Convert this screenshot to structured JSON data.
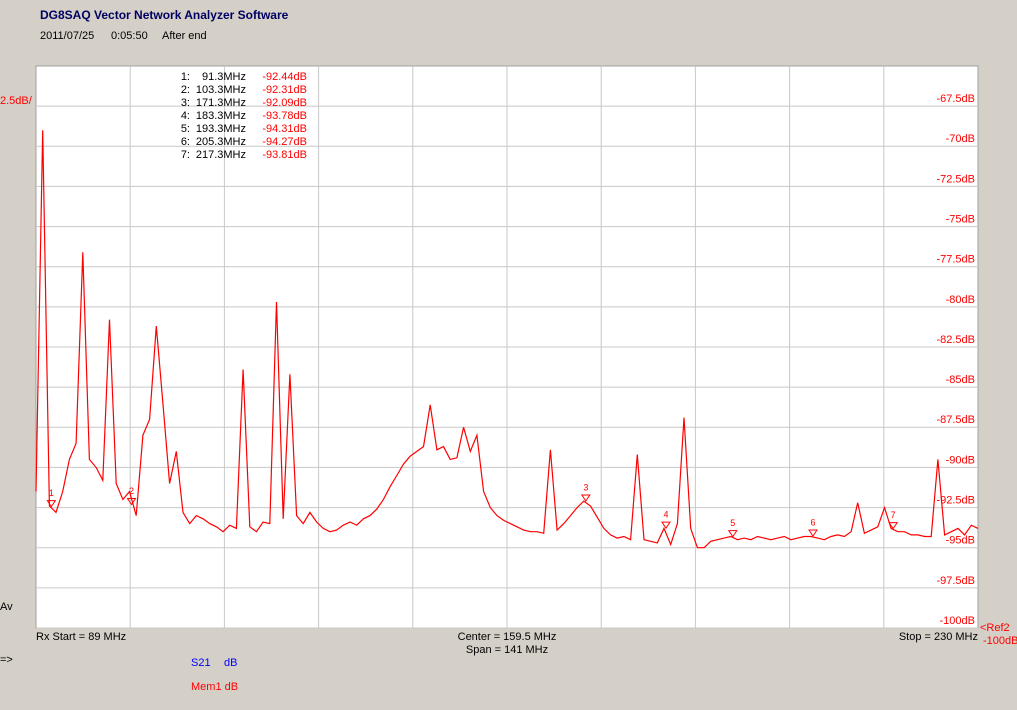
{
  "chart_data": {
    "type": "line",
    "title": "DG8SAQ Vector Network Analyzer Software",
    "date": "2011/07/25",
    "time": "0:05:50",
    "status": "After end",
    "scale_label": "2.5dB/",
    "average_label": "Av",
    "start_label": "Rx Start = 89 MHz",
    "center_label": "Center = 159.5 MHz",
    "span_label": "Span = 141 MHz",
    "stop_label": "Stop = 230 MHz",
    "ref_label": "<Ref2",
    "ref_value_label": "-100dB",
    "prompt": "=>",
    "xlim": [
      89,
      230
    ],
    "ylim": [
      -100,
      -65
    ],
    "yticks": [
      {
        "value": -67.5,
        "label": "-67.5dB"
      },
      {
        "value": -70,
        "label": "-70dB"
      },
      {
        "value": -72.5,
        "label": "-72.5dB"
      },
      {
        "value": -75,
        "label": "-75dB"
      },
      {
        "value": -77.5,
        "label": "-77.5dB"
      },
      {
        "value": -80,
        "label": "-80dB"
      },
      {
        "value": -82.5,
        "label": "-82.5dB"
      },
      {
        "value": -85,
        "label": "-85dB"
      },
      {
        "value": -87.5,
        "label": "-87.5dB"
      },
      {
        "value": -90,
        "label": "-90dB"
      },
      {
        "value": -92.5,
        "label": "-92.5dB"
      },
      {
        "value": -95,
        "label": "-95dB"
      },
      {
        "value": -97.5,
        "label": "-97.5dB"
      },
      {
        "value": -100,
        "label": "-100dB"
      }
    ],
    "grid": true,
    "x": [
      89,
      90,
      91,
      92,
      93,
      94,
      95,
      96,
      97,
      98,
      99,
      100,
      101,
      102,
      103,
      104,
      105,
      106,
      107,
      108,
      109,
      110,
      111,
      112,
      113,
      114,
      115,
      116,
      117,
      118,
      119,
      120,
      121,
      122,
      123,
      124,
      125,
      126,
      127,
      128,
      129,
      130,
      131,
      132,
      133,
      134,
      135,
      136,
      137,
      138,
      139,
      140,
      141,
      142,
      143,
      144,
      145,
      146,
      147,
      148,
      149,
      150,
      151,
      152,
      153,
      154,
      155,
      156,
      157,
      158,
      159,
      160,
      161,
      162,
      163,
      164,
      165,
      166,
      167,
      168,
      169,
      170,
      171,
      172,
      173,
      174,
      175,
      176,
      177,
      178,
      179,
      180,
      181,
      182,
      183,
      184,
      185,
      186,
      187,
      188,
      189,
      190,
      191,
      192,
      193,
      194,
      195,
      196,
      197,
      198,
      199,
      200,
      201,
      202,
      203,
      204,
      205,
      206,
      207,
      208,
      209,
      210,
      211,
      212,
      213,
      214,
      215,
      216,
      217,
      218,
      219,
      220,
      221,
      222,
      223,
      224,
      225,
      226,
      227,
      228,
      229,
      230
    ],
    "series": [
      {
        "name": "Mem1 dB",
        "color": "#ff0000",
        "values": [
          -91.5,
          -69.0,
          -92.4,
          -92.8,
          -91.5,
          -89.5,
          -88.5,
          -76.6,
          -89.5,
          -90.0,
          -90.8,
          -80.8,
          -91.0,
          -92.0,
          -91.5,
          -93.0,
          -88.0,
          -87.0,
          -81.2,
          -86.0,
          -91.0,
          -89.0,
          -92.8,
          -93.5,
          -93.0,
          -93.2,
          -93.5,
          -93.7,
          -94.0,
          -93.6,
          -93.8,
          -83.9,
          -93.7,
          -94.0,
          -93.4,
          -93.5,
          -79.7,
          -93.2,
          -84.2,
          -93.0,
          -93.5,
          -92.8,
          -93.4,
          -93.8,
          -94.0,
          -93.9,
          -93.6,
          -93.4,
          -93.6,
          -93.2,
          -93.0,
          -92.6,
          -92.0,
          -91.2,
          -90.5,
          -89.8,
          -89.3,
          -89.0,
          -88.7,
          -86.1,
          -88.9,
          -88.7,
          -89.5,
          -89.4,
          -87.5,
          -89.0,
          -88.0,
          -91.5,
          -92.5,
          -93.0,
          -93.3,
          -93.5,
          -93.7,
          -93.9,
          -94.0,
          -94.0,
          -94.1,
          -88.9,
          -93.9,
          -93.5,
          -93.0,
          -92.5,
          -92.1,
          -92.4,
          -93.1,
          -93.8,
          -94.2,
          -94.4,
          -94.3,
          -94.5,
          -89.2,
          -94.5,
          -94.6,
          -94.7,
          -93.8,
          -94.8,
          -93.5,
          -86.9,
          -93.8,
          -95.0,
          -95.0,
          -94.6,
          -94.5,
          -94.4,
          -94.3,
          -94.5,
          -94.4,
          -94.5,
          -94.3,
          -94.4,
          -94.5,
          -94.4,
          -94.3,
          -94.5,
          -94.4,
          -94.3,
          -94.3,
          -94.4,
          -94.5,
          -94.3,
          -94.2,
          -94.3,
          -94.0,
          -92.2,
          -94.1,
          -93.9,
          -93.7,
          -92.5,
          -93.8,
          -94.0,
          -94.0,
          -94.2,
          -94.2,
          -94.3,
          -94.3,
          -89.5,
          -94.2,
          -94.0,
          -93.8,
          -94.2,
          -93.6,
          -93.8
        ]
      }
    ],
    "other_traces": [
      {
        "name": "S21",
        "unit": "dB",
        "color": "#0000ff"
      }
    ],
    "markers": [
      {
        "name": "1:",
        "mark": "1",
        "x": 91.3,
        "x_label": "91.3MHz",
        "y": -92.44,
        "y_label": "-92.44dB"
      },
      {
        "name": "2:",
        "mark": "2",
        "x": 103.3,
        "x_label": "103.3MHz",
        "y": -92.31,
        "y_label": "-92.31dB"
      },
      {
        "name": "3:",
        "mark": "3",
        "x": 171.3,
        "x_label": "171.3MHz",
        "y": -92.09,
        "y_label": "-92.09dB"
      },
      {
        "name": "4:",
        "mark": "4",
        "x": 183.3,
        "x_label": "183.3MHz",
        "y": -93.78,
        "y_label": "-93.78dB"
      },
      {
        "name": "5:",
        "mark": "5",
        "x": 193.3,
        "x_label": "193.3MHz",
        "y": -94.31,
        "y_label": "-94.31dB"
      },
      {
        "name": "6:",
        "mark": "6",
        "x": 205.3,
        "x_label": "205.3MHz",
        "y": -94.27,
        "y_label": "-94.27dB"
      },
      {
        "name": "7:",
        "mark": "7",
        "x": 217.3,
        "x_label": "217.3MHz",
        "y": -93.81,
        "y_label": "-93.81dB"
      }
    ]
  }
}
